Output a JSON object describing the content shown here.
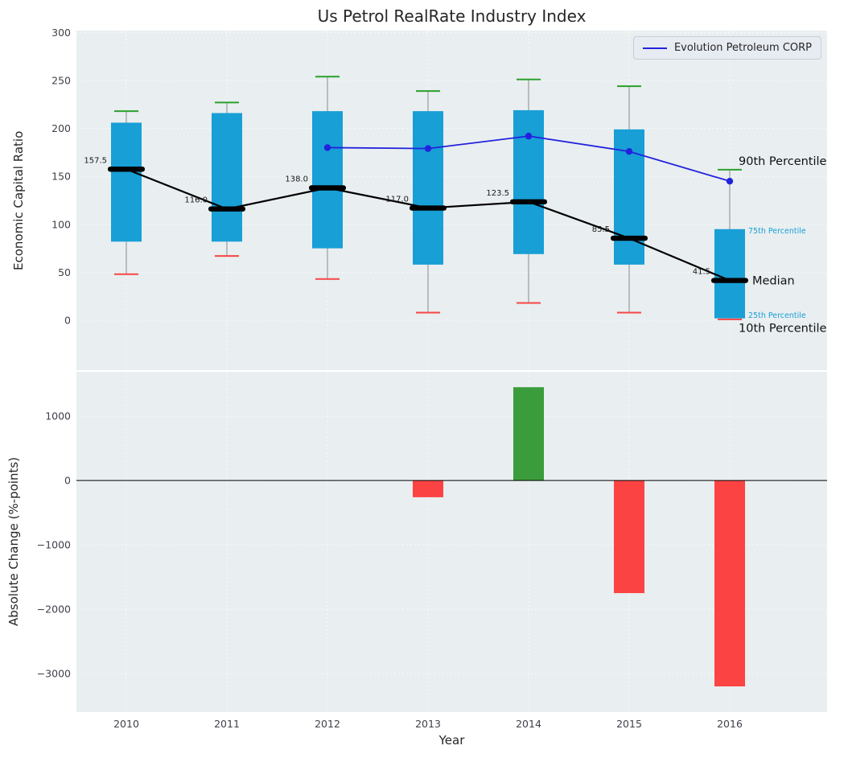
{
  "title": "Us Petrol RealRate Industry Index",
  "colors": {
    "box": "#189fd6",
    "cap_top": "#2ca02c",
    "cap_bottom": "#f84545",
    "whisker": "#9b9b9b",
    "median": "#000000",
    "company_line": "#2222dd",
    "bar_positive": "#3b9c3b",
    "bar_negative": "#fc4343",
    "axes_bg": "#e9eef0",
    "grid": "#f8fbfc"
  },
  "chart_data": [
    {
      "type": "boxplot",
      "title": "Us Petrol RealRate Industry Index",
      "ylabel": "Economic Capital Ratio",
      "categories": [
        "2010",
        "2011",
        "2012",
        "2013",
        "2014",
        "2015",
        "2016"
      ],
      "ylim": [
        -52,
        302
      ],
      "yticks": [
        {
          "v": 0,
          "label": "0"
        },
        {
          "v": 50,
          "label": "50"
        },
        {
          "v": 100,
          "label": "100"
        },
        {
          "v": 150,
          "label": "150"
        },
        {
          "v": 200,
          "label": "200"
        },
        {
          "v": 250,
          "label": "250"
        },
        {
          "v": 300,
          "label": "300"
        }
      ],
      "grid": true,
      "legend_position": "upper right",
      "company_name": "Evolution Petroleum CORP",
      "series": {
        "p90": [
          218,
          227,
          254,
          239,
          251,
          244,
          157
        ],
        "p75": [
          206,
          216,
          218,
          218,
          219,
          199,
          95
        ],
        "median": [
          157.5,
          116.0,
          138.0,
          117.0,
          123.5,
          85.5,
          41.5
        ],
        "p25": [
          82,
          82,
          75,
          58,
          69,
          58,
          2
        ],
        "p10": [
          48,
          67,
          43,
          8,
          18,
          8,
          1
        ],
        "company": [
          null,
          null,
          180,
          179,
          192,
          176,
          145
        ]
      },
      "median_labels": [
        "157.5",
        "116.0",
        "138.0",
        "117.0",
        "123.5",
        "85.5",
        "41.5"
      ],
      "annotations": [
        {
          "text": "90th Percentile",
          "y": 166,
          "dx": 11,
          "style": "big"
        },
        {
          "text": "75th Percentile",
          "y": 93,
          "dx": 23,
          "style": "small"
        },
        {
          "text": "Median",
          "y": 41.5,
          "dx": 28,
          "style": "big"
        },
        {
          "text": "25th Percentile",
          "y": 5,
          "dx": 23,
          "style": "small"
        },
        {
          "text": "10th Percentile",
          "y": -8,
          "dx": 11,
          "style": "big"
        }
      ]
    },
    {
      "type": "bar",
      "ylabel": "Absolute Change (%-points)",
      "xlabel": "Year",
      "categories": [
        "2010",
        "2011",
        "2012",
        "2013",
        "2014",
        "2015",
        "2016"
      ],
      "values": [
        0,
        0,
        0,
        -260,
        1450,
        -1750,
        -3200
      ],
      "ylim": [
        -3600,
        1690
      ],
      "yticks": [
        {
          "v": 1000,
          "label": "1000"
        },
        {
          "v": 0,
          "label": "0"
        },
        {
          "v": -1000,
          "label": "−1000"
        },
        {
          "v": -2000,
          "label": "−2000"
        },
        {
          "v": -3000,
          "label": "−3000"
        }
      ],
      "zero_line": true,
      "grid": true
    }
  ]
}
